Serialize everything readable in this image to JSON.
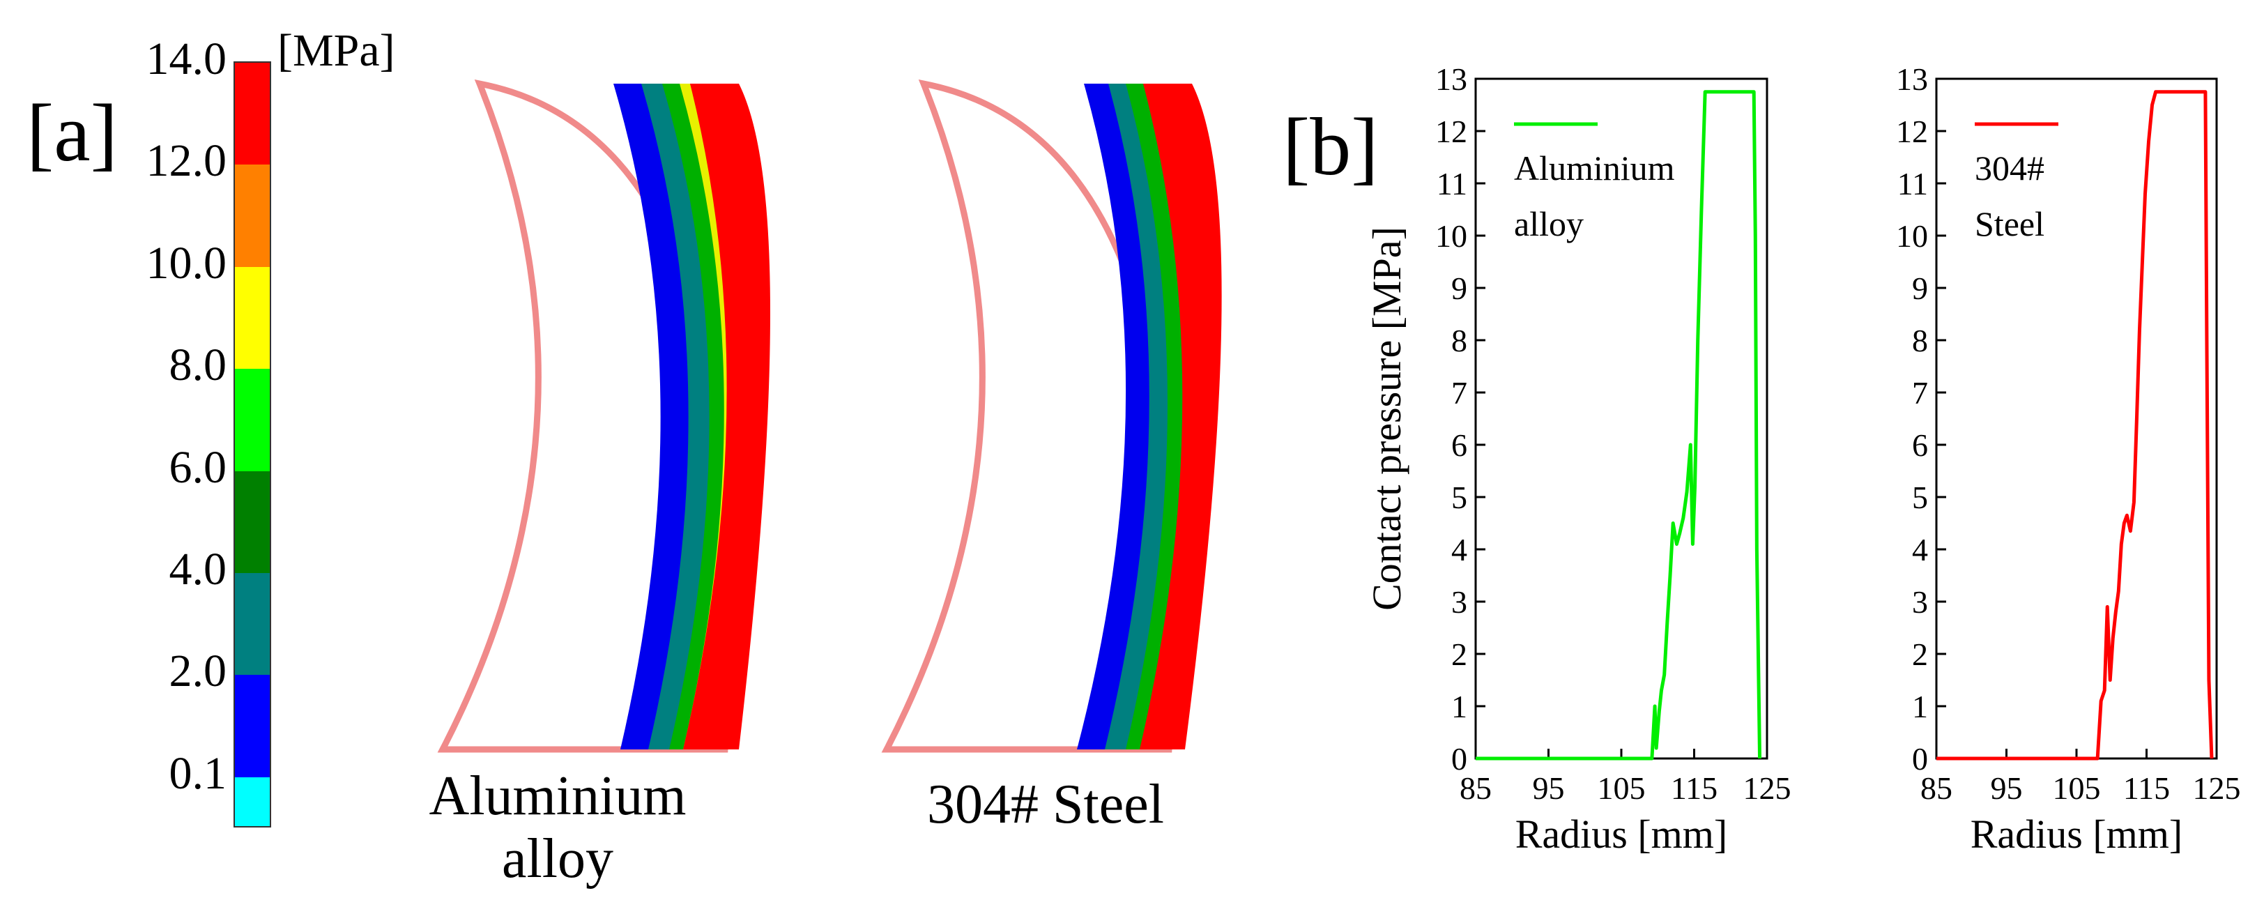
{
  "panel_a": {
    "label": "[a]",
    "colorbar": {
      "unit": "[MPa]",
      "ticks": [
        "14.0",
        "12.0",
        "10.0",
        "8.0",
        "6.0",
        "4.0",
        "2.0",
        "0.1"
      ],
      "colors": [
        "#ff0000",
        "#ff8000",
        "#ffff00",
        "#00ff00",
        "#008000",
        "#008080",
        "#0000ff",
        "#00ffff"
      ]
    },
    "contours": [
      {
        "caption_line1": "Aluminium",
        "caption_line2": "alloy"
      },
      {
        "caption_line1": "304# Steel",
        "caption_line2": ""
      }
    ]
  },
  "panel_b": {
    "label": "[b]"
  },
  "chart_data": [
    {
      "type": "line",
      "title": "",
      "xlabel": "Radius [mm]",
      "ylabel": "Contact pressure [MPa]",
      "xlim": [
        85,
        125
      ],
      "ylim": [
        0,
        13
      ],
      "xticks": [
        85,
        95,
        105,
        115,
        125
      ],
      "yticks": [
        0,
        1,
        2,
        3,
        4,
        5,
        6,
        7,
        8,
        9,
        10,
        11,
        12,
        13
      ],
      "legend": [
        "Aluminium",
        "alloy"
      ],
      "legend_position": "top-left",
      "series": [
        {
          "name": "Aluminium alloy",
          "color": "#00ee00",
          "x": [
            85,
            109.2,
            109.6,
            109.8,
            110.2,
            110.5,
            110.9,
            111.3,
            111.7,
            112.1,
            112.6,
            113.0,
            113.5,
            114.0,
            114.5,
            114.8,
            115.1,
            115.5,
            116.0,
            116.5,
            123.2,
            123.4,
            123.6,
            124.0
          ],
          "y": [
            0,
            0,
            1.0,
            0.2,
            0.9,
            1.3,
            1.6,
            2.6,
            3.5,
            4.5,
            4.1,
            4.3,
            4.6,
            5.1,
            6.0,
            4.1,
            5.2,
            8.0,
            10.5,
            12.75,
            12.75,
            10.0,
            4.0,
            0
          ]
        }
      ]
    },
    {
      "type": "line",
      "title": "",
      "xlabel": "Radius [mm]",
      "ylabel": "",
      "xlim": [
        85,
        125
      ],
      "ylim": [
        0,
        13
      ],
      "xticks": [
        85,
        95,
        105,
        115,
        125
      ],
      "yticks": [
        0,
        1,
        2,
        3,
        4,
        5,
        6,
        7,
        8,
        9,
        10,
        11,
        12,
        13
      ],
      "legend": [
        "304#",
        "Steel"
      ],
      "legend_position": "top-left",
      "series": [
        {
          "name": "304# Steel",
          "color": "#ff0000",
          "x": [
            85,
            108.0,
            108.5,
            109.0,
            109.4,
            109.8,
            110.2,
            110.6,
            111.0,
            111.4,
            111.8,
            112.2,
            112.7,
            113.2,
            113.6,
            114.0,
            114.4,
            114.8,
            115.3,
            115.8,
            116.3,
            123.4,
            123.6,
            123.9,
            124.3
          ],
          "y": [
            0,
            0,
            1.1,
            1.3,
            2.9,
            1.5,
            2.3,
            2.8,
            3.2,
            4.1,
            4.5,
            4.65,
            4.35,
            4.9,
            6.5,
            8.2,
            9.5,
            10.8,
            11.8,
            12.5,
            12.75,
            12.75,
            8.0,
            1.5,
            0
          ]
        }
      ]
    }
  ]
}
